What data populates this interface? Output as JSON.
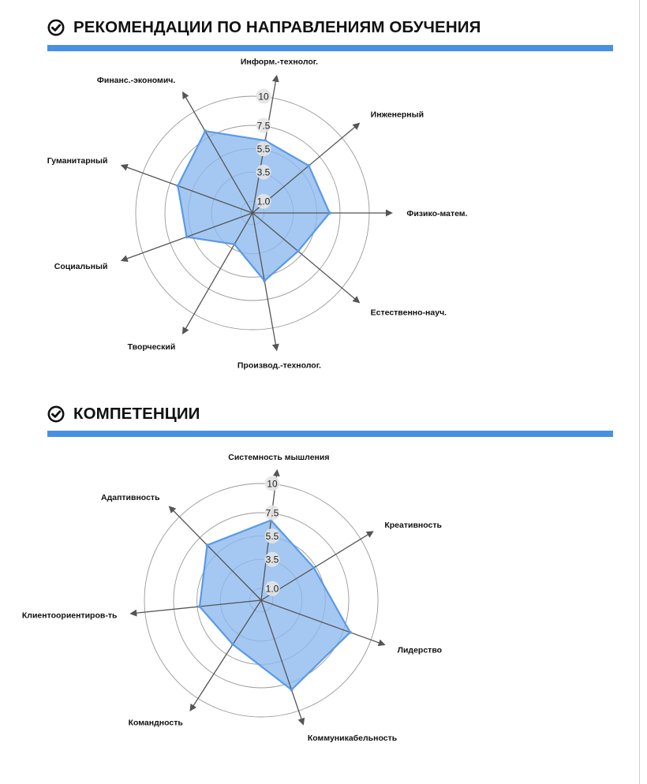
{
  "colors": {
    "accent": "#4a90e2",
    "area_fill": "#8ab8ee",
    "area_stroke": "#5a9ae6",
    "axis": "#555555",
    "ring": "#999999",
    "tick_bg": "#e4e4e4"
  },
  "sections": [
    {
      "title": "РЕКОМЕНДАЦИИ ПО НАПРАВЛЕНИЯМ ОБУЧЕНИЯ",
      "icon": "check-circle-icon"
    },
    {
      "title": "КОМПЕТЕНЦИИ",
      "icon": "check-circle-icon"
    }
  ],
  "chart_data": [
    {
      "type": "radar",
      "title": "",
      "ticks": [
        "1.0",
        "3.5",
        "5.5",
        "7.5",
        "10"
      ],
      "range": [
        0,
        10
      ],
      "categories": [
        "Информ.-технолог.",
        "Инженерный",
        "Физико-матем.",
        "Естественно-науч.",
        "Производ.-технолог.",
        "Творческий",
        "Социальный",
        "Гуманитарный",
        "Финанс.-экономич."
      ],
      "values": [
        6.3,
        6.3,
        6.6,
        5.1,
        5.9,
        3.1,
        6.0,
        6.8,
        8.1
      ]
    },
    {
      "type": "radar",
      "title": "",
      "ticks": [
        "1.0",
        "3.5",
        "5.5",
        "7.5",
        "10"
      ],
      "range": [
        0,
        10
      ],
      "categories": [
        "Системность мышления",
        "Креативность",
        "Лидерство",
        "Коммуникабельность",
        "Командность",
        "Клиентоориентиров-ть",
        "Адаптивность"
      ],
      "values": [
        6.9,
        5.3,
        8.1,
        8.1,
        4.5,
        5.3,
        6.6
      ]
    }
  ]
}
